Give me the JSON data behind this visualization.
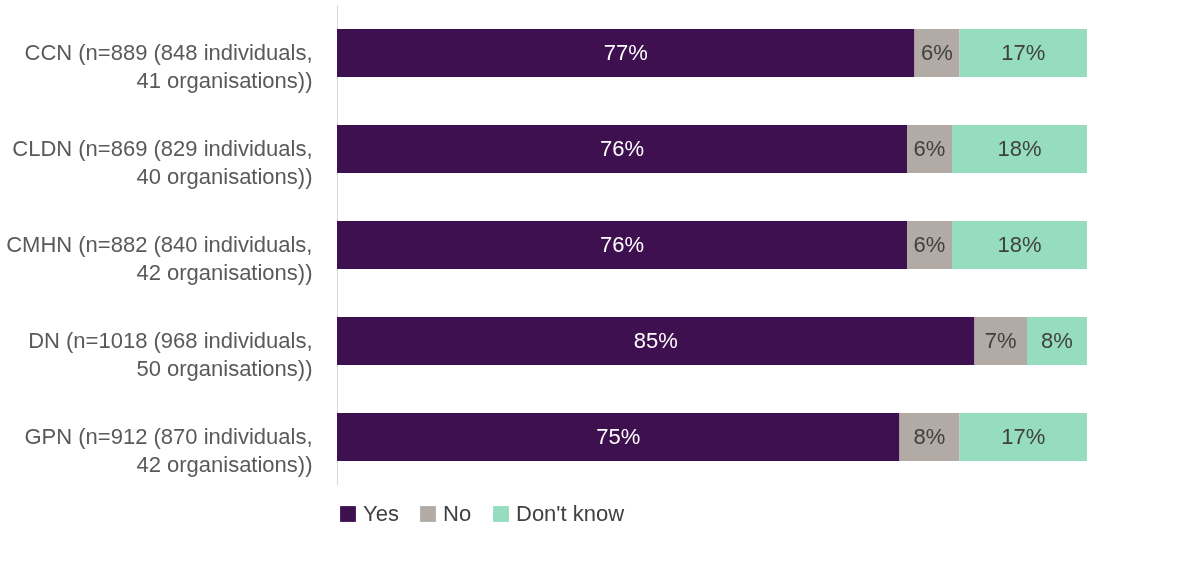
{
  "chart_data": {
    "type": "bar",
    "orientation": "horizontal",
    "stacked": true,
    "xlim": [
      0,
      100
    ],
    "tick_labels": "y",
    "legend": "bottom",
    "categories": [
      "CCN (n=889 (848 individuals, 41 organisations))",
      "CLDN (n=869 (829 individuals, 40 organisations))",
      "CMHN (n=882 (840 individuals, 42 organisations))",
      "DN (n=1018 (968 individuals, 50 organisations))",
      "GPN (n=912 (870 individuals, 42 organisations))"
    ],
    "series": [
      {
        "name": "Yes",
        "color": "#3f1050",
        "values": [
          77,
          76,
          76,
          85,
          75
        ],
        "value_labels": [
          "77%",
          "76%",
          "76%",
          "85%",
          "75%"
        ]
      },
      {
        "name": "No",
        "color": "#b1aaa5",
        "values": [
          6,
          6,
          6,
          7,
          8
        ],
        "value_labels": [
          "6%",
          "6%",
          "6%",
          "7%",
          "8%"
        ]
      },
      {
        "name": "Don't know",
        "color": "#96dcbe",
        "values": [
          17,
          18,
          18,
          8,
          17
        ],
        "value_labels": [
          "17%",
          "18%",
          "18%",
          "8%",
          "17%"
        ]
      }
    ]
  }
}
